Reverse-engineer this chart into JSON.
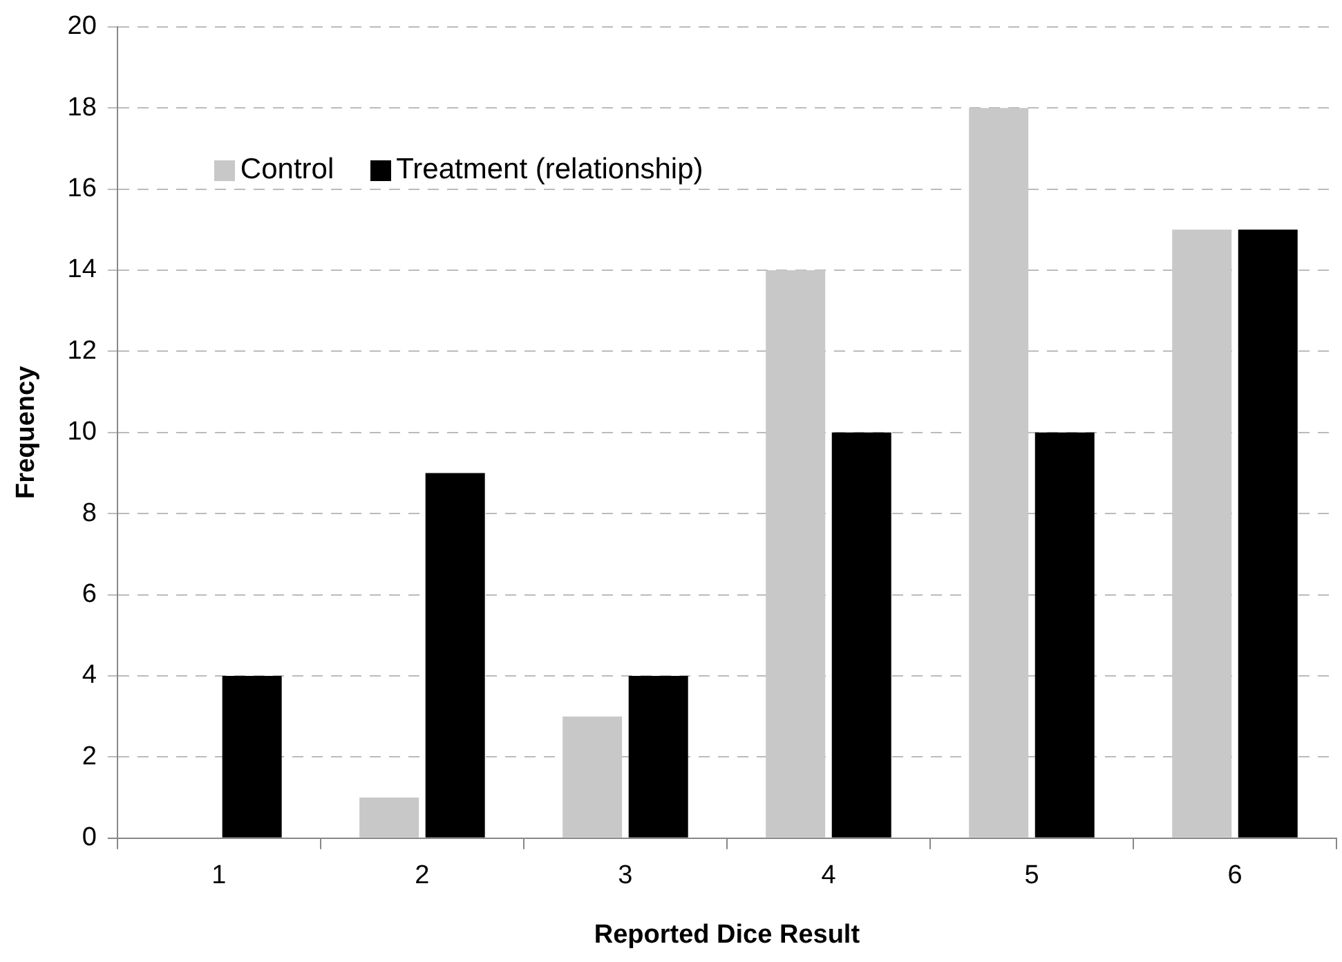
{
  "chart_data": {
    "type": "bar",
    "xlabel": "Reported Dice Result",
    "ylabel": "Frequency",
    "categories": [
      "1",
      "2",
      "3",
      "4",
      "5",
      "6"
    ],
    "series": [
      {
        "name": "Control",
        "color": "#c8c8c8",
        "values": [
          0,
          1,
          3,
          14,
          18,
          15
        ]
      },
      {
        "name": "Treatment (relationship)",
        "color": "#000000",
        "values": [
          4,
          9,
          4,
          10,
          10,
          15
        ]
      }
    ],
    "ylim": [
      0,
      20
    ],
    "yticks": [
      0,
      2,
      4,
      6,
      8,
      10,
      12,
      14,
      16,
      18,
      20
    ],
    "grid": "y",
    "legend": "top left"
  }
}
